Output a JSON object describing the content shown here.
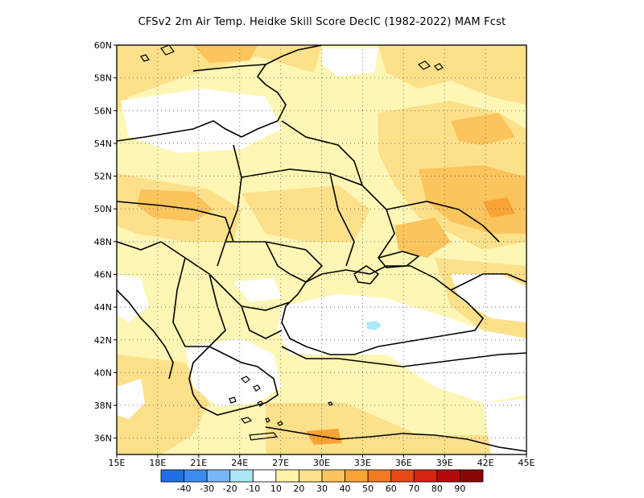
{
  "title": "CFSv2  2m Air Temp. Heidke Skill Score DecIC (1982-2022) MAM Fcst",
  "map": {
    "region": "Eastern Europe / Black Sea",
    "lon_range": [
      15,
      45
    ],
    "lat_range": [
      35,
      60
    ],
    "x_ticks": [
      "15E",
      "18E",
      "21E",
      "24E",
      "27E",
      "30E",
      "33E",
      "36E",
      "39E",
      "42E",
      "45E"
    ],
    "y_ticks": [
      "36N",
      "38N",
      "40N",
      "42N",
      "44N",
      "46N",
      "48N",
      "50N",
      "52N",
      "54N",
      "56N",
      "58N",
      "60N"
    ],
    "grid": "dotted"
  },
  "colorbar": {
    "labels": [
      "-40",
      "-30",
      "-20",
      "-10",
      "10",
      "20",
      "30",
      "40",
      "50",
      "60",
      "70",
      "80",
      "90"
    ],
    "colors": [
      "#1e6fe6",
      "#3b8cf0",
      "#79b6f5",
      "#aee8f7",
      "#ffffff",
      "#fff3a8",
      "#fde08a",
      "#fbc45c",
      "#f9a333",
      "#f47b20",
      "#e84c14",
      "#d42510",
      "#b00d0a",
      "#8a0606"
    ]
  }
}
